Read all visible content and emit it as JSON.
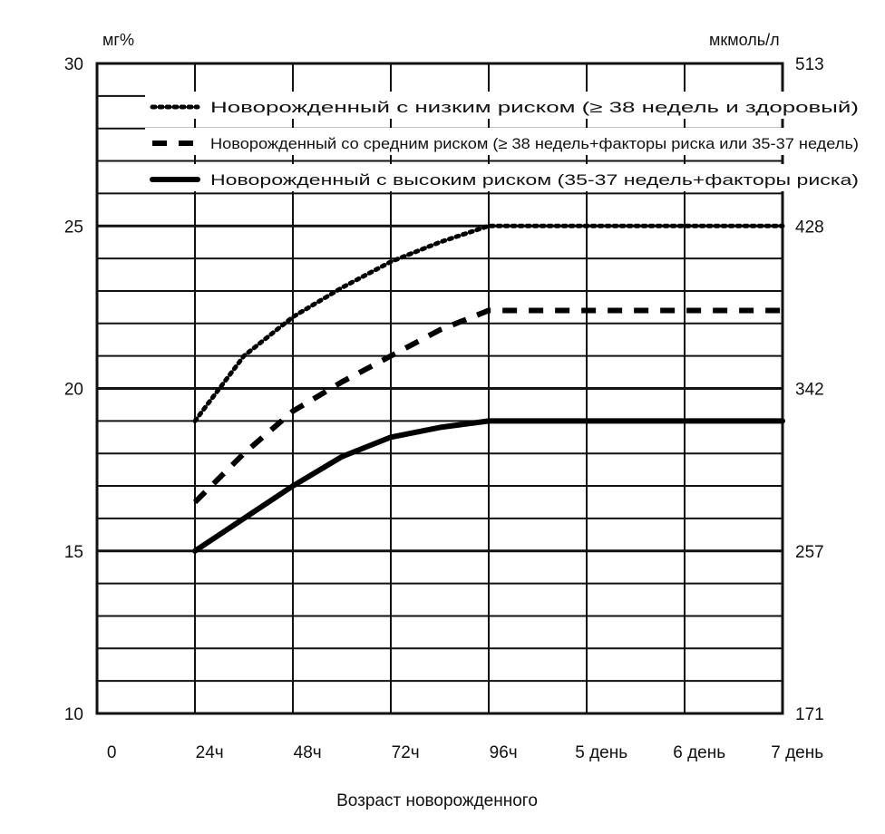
{
  "chart_data": {
    "type": "line",
    "title": "",
    "xlabel": "Возраст новорожденного",
    "ylabel_left_unit": "мг%",
    "ylabel_right_unit": "мкмоль/л",
    "x_categories": [
      "0",
      "24ч",
      "48ч",
      "72ч",
      "96ч",
      "5 день",
      "6 день",
      "7 день"
    ],
    "ylim": [
      10,
      30
    ],
    "left_ticks": [
      "30",
      "25",
      "20",
      "15",
      "10"
    ],
    "right_ticks": [
      "513",
      "428",
      "342",
      "257",
      "171"
    ],
    "grid": true,
    "legend_position": "top-right",
    "series": [
      {
        "name": "Новорожденный с низким риском (≥ 38 недель и здоровый)",
        "style": "dotted",
        "x_hours": [
          24,
          36,
          48,
          60,
          72,
          84,
          96,
          120,
          144,
          168
        ],
        "y": [
          19.0,
          21.0,
          22.2,
          23.1,
          23.9,
          24.5,
          25.0,
          25.0,
          25.0,
          25.0
        ]
      },
      {
        "name": "Новорожденный со средним риском (≥ 38 недель+факторы риска или 35-37 недель)",
        "style": "dashed",
        "x_hours": [
          24,
          36,
          48,
          60,
          72,
          84,
          96,
          120,
          144,
          168
        ],
        "y": [
          16.5,
          18.0,
          19.3,
          20.2,
          21.0,
          21.8,
          22.4,
          22.4,
          22.4,
          22.4
        ]
      },
      {
        "name": "Новорожденный с высоким риском (35-37 недель+факторы риска)",
        "style": "solid",
        "x_hours": [
          24,
          36,
          48,
          60,
          72,
          84,
          96,
          120,
          144,
          168
        ],
        "y": [
          15.0,
          16.0,
          17.0,
          17.9,
          18.5,
          18.8,
          19.0,
          19.0,
          19.0,
          19.0
        ]
      }
    ]
  }
}
